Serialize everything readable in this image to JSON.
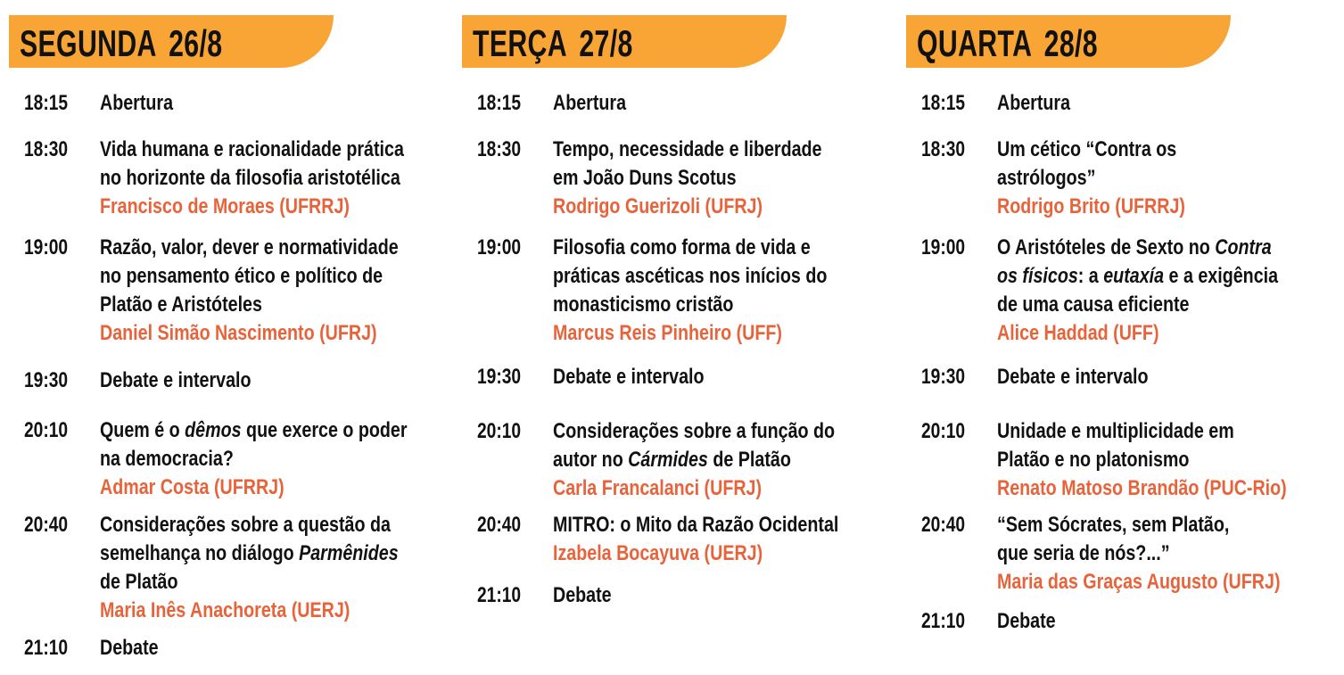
{
  "colors": {
    "header_bg": "#F8A535",
    "speaker": "#E8633A",
    "text": "#111111"
  },
  "days": [
    {
      "title": "SEGUNDA 26/8",
      "entries": [
        {
          "time": "18:15",
          "lines": [
            [
              {
                "t": "Abertura"
              }
            ]
          ]
        },
        {
          "time": "18:30",
          "lines": [
            [
              {
                "t": "Vida humana e racionalidade prática"
              }
            ],
            [
              {
                "t": "no horizonte da filosofia aristotélica"
              }
            ]
          ],
          "speaker": "Francisco de Moraes (UFRRJ)"
        },
        {
          "time": "19:00",
          "lines": [
            [
              {
                "t": "Razão, valor, dever e normatividade"
              }
            ],
            [
              {
                "t": "no pensamento ético e político de"
              }
            ],
            [
              {
                "t": "Platão e Aristóteles"
              }
            ]
          ],
          "speaker": "Daniel Simão Nascimento (UFRJ)"
        },
        {
          "time": "19:30",
          "lines": [
            [
              {
                "t": "Debate e intervalo"
              }
            ]
          ]
        },
        {
          "time": "20:10",
          "lines": [
            [
              {
                "t": "Quem é o "
              },
              {
                "t": "dêmos",
                "i": true
              },
              {
                "t": " que exerce o poder"
              }
            ],
            [
              {
                "t": "na democracia?"
              }
            ]
          ],
          "speaker": "Admar Costa (UFRRJ)"
        },
        {
          "time": "20:40",
          "lines": [
            [
              {
                "t": "Considerações sobre a questão da"
              }
            ],
            [
              {
                "t": "semelhança no diálogo "
              },
              {
                "t": "Parmênides",
                "i": true
              }
            ],
            [
              {
                "t": "de Platão"
              }
            ]
          ],
          "speaker": "Maria Inês Anachoreta (UERJ)"
        },
        {
          "time": "21:10",
          "lines": [
            [
              {
                "t": "Debate"
              }
            ]
          ]
        }
      ]
    },
    {
      "title": "TERÇA 27/8",
      "entries": [
        {
          "time": "18:15",
          "lines": [
            [
              {
                "t": "Abertura"
              }
            ]
          ]
        },
        {
          "time": "18:30",
          "lines": [
            [
              {
                "t": "Tempo, necessidade e liberdade"
              }
            ],
            [
              {
                "t": "em João Duns Scotus"
              }
            ]
          ],
          "speaker": "Rodrigo Guerizoli (UFRJ)"
        },
        {
          "time": "19:00",
          "lines": [
            [
              {
                "t": "Filosofia como forma de vida e"
              }
            ],
            [
              {
                "t": "práticas ascéticas nos inícios do"
              }
            ],
            [
              {
                "t": "monasticismo cristão"
              }
            ]
          ],
          "speaker": "Marcus Reis Pinheiro (UFF)"
        },
        {
          "time": "19:30",
          "lines": [
            [
              {
                "t": "Debate e intervalo"
              }
            ]
          ]
        },
        {
          "time": "20:10",
          "lines": [
            [
              {
                "t": "Considerações sobre a função do"
              }
            ],
            [
              {
                "t": "autor no "
              },
              {
                "t": "Cármides",
                "i": true
              },
              {
                "t": " de Platão"
              }
            ]
          ],
          "speaker": "Carla Francalanci (UFRJ)"
        },
        {
          "time": "20:40",
          "lines": [
            [
              {
                "t": "MITRO: o Mito da Razão Ocidental"
              }
            ]
          ],
          "speaker": "Izabela Bocayuva (UERJ)"
        },
        {
          "time": "21:10",
          "lines": [
            [
              {
                "t": "Debate"
              }
            ]
          ]
        }
      ]
    },
    {
      "title": "QUARTA 28/8",
      "entries": [
        {
          "time": "18:15",
          "lines": [
            [
              {
                "t": "Abertura"
              }
            ]
          ]
        },
        {
          "time": "18:30",
          "lines": [
            [
              {
                "t": "Um cético “Contra os"
              }
            ],
            [
              {
                "t": "astrólogos”"
              }
            ]
          ],
          "speaker": "Rodrigo Brito (UFRRJ)"
        },
        {
          "time": "19:00",
          "lines": [
            [
              {
                "t": "O Aristóteles de Sexto no "
              },
              {
                "t": "Contra",
                "i": true
              }
            ],
            [
              {
                "t": "os físicos",
                "i": true
              },
              {
                "t": ": a "
              },
              {
                "t": "eutaxía",
                "i": true
              },
              {
                "t": " e a exigência"
              }
            ],
            [
              {
                "t": "de uma causa eficiente"
              }
            ]
          ],
          "speaker": "Alice Haddad (UFF)"
        },
        {
          "time": "19:30",
          "lines": [
            [
              {
                "t": "Debate e intervalo"
              }
            ]
          ]
        },
        {
          "time": "20:10",
          "lines": [
            [
              {
                "t": "Unidade e multiplicidade em"
              }
            ],
            [
              {
                "t": "Platão e no platonismo"
              }
            ]
          ],
          "speaker": "Renato Matoso Brandão (PUC-Rio)"
        },
        {
          "time": "20:40",
          "lines": [
            [
              {
                "t": "“Sem Sócrates, sem Platão,"
              }
            ],
            [
              {
                "t": "que seria de nós?...”"
              }
            ]
          ],
          "speaker": "Maria das Graças Augusto (UFRJ)"
        },
        {
          "time": "21:10",
          "lines": [
            [
              {
                "t": "Debate"
              }
            ]
          ]
        }
      ]
    }
  ]
}
